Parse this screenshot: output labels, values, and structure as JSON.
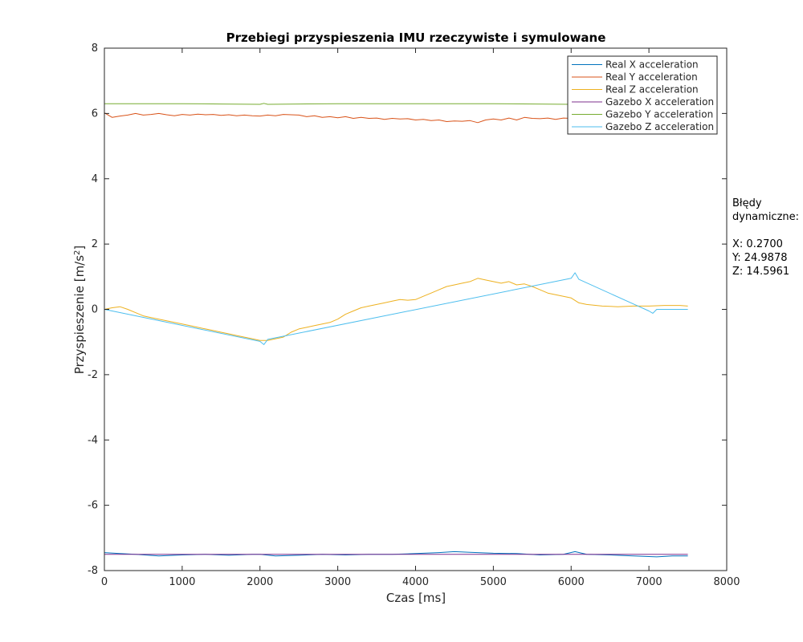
{
  "chart_data": {
    "type": "line",
    "title": "Przebiegi przyspieszenia IMU rzeczywiste i symulowane",
    "xlabel": "Czas [ms]",
    "ylabel_prefix": "Przyspieszenie [m/s",
    "ylabel_sup": "2",
    "ylabel_suffix": "]",
    "xlim": [
      0,
      8000
    ],
    "ylim": [
      -8,
      8
    ],
    "xticks": [
      0,
      1000,
      2000,
      3000,
      4000,
      5000,
      6000,
      7000,
      8000
    ],
    "yticks": [
      -8,
      -6,
      -4,
      -2,
      0,
      2,
      4,
      6,
      8
    ],
    "grid": false,
    "legend_position": "top-right",
    "series": [
      {
        "name": "Real X acceleration",
        "color": "#0072BD",
        "x": [
          0,
          200,
          400,
          700,
          1000,
          1300,
          1600,
          1900,
          2000,
          2200,
          2500,
          2800,
          3100,
          3400,
          3700,
          4000,
          4300,
          4500,
          4700,
          5000,
          5300,
          5600,
          5900,
          6050,
          6200,
          6500,
          6800,
          7100,
          7300,
          7500
        ],
        "y": [
          -7.45,
          -7.48,
          -7.5,
          -7.55,
          -7.52,
          -7.5,
          -7.53,
          -7.5,
          -7.5,
          -7.55,
          -7.53,
          -7.5,
          -7.52,
          -7.5,
          -7.5,
          -7.48,
          -7.45,
          -7.42,
          -7.44,
          -7.47,
          -7.48,
          -7.52,
          -7.5,
          -7.42,
          -7.5,
          -7.52,
          -7.55,
          -7.58,
          -7.55,
          -7.55
        ]
      },
      {
        "name": "Real Y acceleration",
        "color": "#D95319",
        "x": [
          0,
          100,
          200,
          300,
          400,
          500,
          600,
          700,
          800,
          900,
          1000,
          1100,
          1200,
          1300,
          1400,
          1500,
          1600,
          1700,
          1800,
          1900,
          2000,
          2100,
          2200,
          2300,
          2400,
          2500,
          2600,
          2700,
          2800,
          2900,
          3000,
          3100,
          3200,
          3300,
          3400,
          3500,
          3600,
          3700,
          3800,
          3900,
          4000,
          4100,
          4200,
          4300,
          4400,
          4500,
          4600,
          4700,
          4800,
          4900,
          5000,
          5100,
          5200,
          5300,
          5400,
          5500,
          5600,
          5700,
          5800,
          5900,
          6000
        ],
        "y": [
          6.02,
          5.88,
          5.92,
          5.95,
          6.0,
          5.95,
          5.97,
          6.0,
          5.96,
          5.93,
          5.97,
          5.95,
          5.98,
          5.96,
          5.97,
          5.94,
          5.96,
          5.93,
          5.95,
          5.93,
          5.92,
          5.95,
          5.93,
          5.97,
          5.96,
          5.95,
          5.9,
          5.93,
          5.88,
          5.9,
          5.87,
          5.9,
          5.85,
          5.88,
          5.85,
          5.86,
          5.82,
          5.85,
          5.83,
          5.84,
          5.8,
          5.82,
          5.78,
          5.8,
          5.75,
          5.77,
          5.76,
          5.78,
          5.72,
          5.8,
          5.83,
          5.8,
          5.86,
          5.8,
          5.88,
          5.85,
          5.84,
          5.86,
          5.82,
          5.86,
          5.85
        ]
      },
      {
        "name": "Real Z acceleration",
        "color": "#EDB120",
        "x": [
          0,
          100,
          200,
          300,
          400,
          500,
          600,
          700,
          800,
          900,
          1000,
          1100,
          1200,
          1300,
          1400,
          1500,
          1600,
          1700,
          1800,
          1900,
          2000,
          2100,
          2200,
          2300,
          2400,
          2500,
          2600,
          2700,
          2800,
          2900,
          3000,
          3100,
          3200,
          3300,
          3400,
          3500,
          3600,
          3700,
          3800,
          3900,
          4000,
          4100,
          4200,
          4300,
          4400,
          4500,
          4600,
          4700,
          4800,
          4900,
          5000,
          5100,
          5200,
          5300,
          5400,
          5500,
          5600,
          5700,
          5800,
          5900,
          6000,
          6100,
          6200,
          6400,
          6600,
          6800,
          7000,
          7200,
          7400,
          7500
        ],
        "y": [
          0.0,
          0.05,
          0.08,
          0.0,
          -0.1,
          -0.2,
          -0.25,
          -0.3,
          -0.35,
          -0.4,
          -0.45,
          -0.5,
          -0.55,
          -0.6,
          -0.65,
          -0.7,
          -0.75,
          -0.8,
          -0.85,
          -0.9,
          -0.95,
          -0.95,
          -0.9,
          -0.85,
          -0.7,
          -0.6,
          -0.55,
          -0.5,
          -0.45,
          -0.4,
          -0.3,
          -0.15,
          -0.05,
          0.05,
          0.1,
          0.15,
          0.2,
          0.25,
          0.3,
          0.28,
          0.3,
          0.4,
          0.5,
          0.6,
          0.7,
          0.75,
          0.8,
          0.85,
          0.95,
          0.9,
          0.85,
          0.8,
          0.85,
          0.75,
          0.78,
          0.7,
          0.6,
          0.5,
          0.45,
          0.4,
          0.35,
          0.2,
          0.15,
          0.1,
          0.08,
          0.1,
          0.1,
          0.12,
          0.12,
          0.1
        ]
      },
      {
        "name": "Gazebo X acceleration",
        "color": "#7E2F8E",
        "x": [
          0,
          500,
          1000,
          1500,
          2000,
          2500,
          3000,
          3500,
          4000,
          4500,
          5000,
          5500,
          6000,
          6500,
          7000,
          7500
        ],
        "y": [
          -7.5,
          -7.5,
          -7.5,
          -7.5,
          -7.5,
          -7.5,
          -7.5,
          -7.5,
          -7.5,
          -7.5,
          -7.5,
          -7.5,
          -7.5,
          -7.5,
          -7.5,
          -7.5
        ]
      },
      {
        "name": "Gazebo Y acceleration",
        "color": "#77AC30",
        "x": [
          0,
          1000,
          1500,
          2000,
          2050,
          2100,
          2500,
          3000,
          4000,
          5000,
          6000,
          6050,
          6100,
          6500,
          7000,
          7500
        ],
        "y": [
          6.3,
          6.3,
          6.29,
          6.28,
          6.31,
          6.28,
          6.29,
          6.3,
          6.3,
          6.3,
          6.28,
          6.29,
          6.27,
          6.28,
          6.28,
          6.28
        ]
      },
      {
        "name": "Gazebo Z acceleration",
        "color": "#4DBEEE",
        "x": [
          0,
          2000,
          2050,
          2100,
          6000,
          6050,
          6100,
          7000,
          7050,
          7100,
          7500
        ],
        "y": [
          0.0,
          -0.98,
          -1.08,
          -0.92,
          0.95,
          1.12,
          0.92,
          -0.05,
          -0.12,
          0.0,
          0.0
        ]
      }
    ],
    "annotation": {
      "lines": [
        "Błędy",
        "dynamiczne:",
        "",
        "X: 0.2700",
        "Y: 24.9878",
        "Z: 14.5961"
      ]
    }
  }
}
